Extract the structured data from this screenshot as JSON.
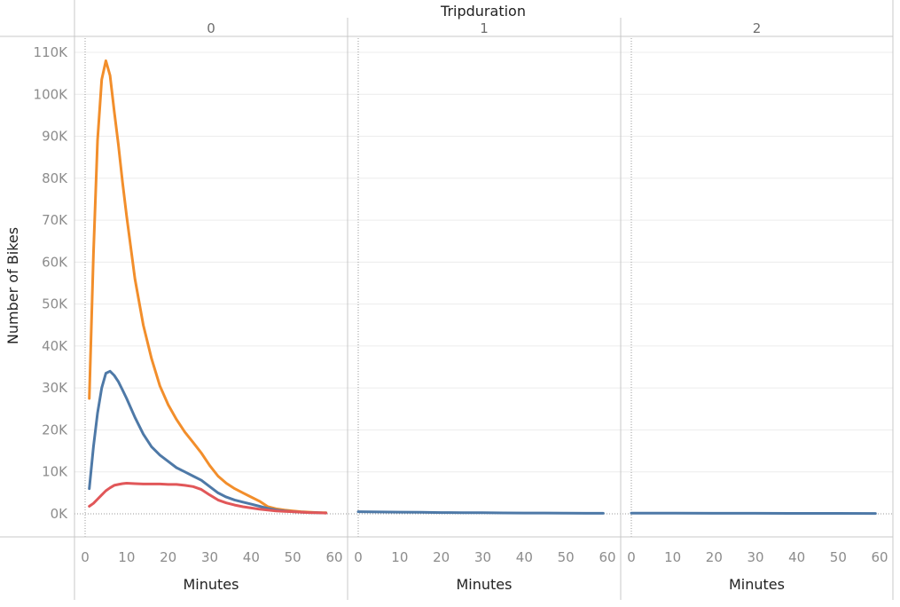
{
  "chart_data": {
    "type": "line",
    "title": "Tripduration",
    "ylabel": "Number of Bikes",
    "xlabel": "Minutes",
    "ylim": [
      0,
      110000
    ],
    "xlim": [
      0,
      60
    ],
    "y_ticks": [
      0,
      10000,
      20000,
      30000,
      40000,
      50000,
      60000,
      70000,
      80000,
      90000,
      100000,
      110000
    ],
    "y_tick_labels": [
      "0K",
      "10K",
      "20K",
      "30K",
      "40K",
      "50K",
      "60K",
      "70K",
      "80K",
      "90K",
      "100K",
      "110K"
    ],
    "x_ticks": [
      0,
      10,
      20,
      30,
      40,
      50,
      60
    ],
    "x_tick_labels": [
      "0",
      "10",
      "20",
      "30",
      "40",
      "50",
      "60"
    ],
    "grid": true,
    "panels": [
      {
        "header": "0",
        "series": [
          {
            "color": "#f28e2b",
            "x": [
              1,
              2,
              3,
              4,
              5,
              6,
              7,
              8,
              9,
              10,
              12,
              14,
              16,
              18,
              20,
              22,
              24,
              26,
              28,
              30,
              32,
              34,
              36,
              38,
              40,
              42,
              44,
              46,
              48,
              50,
              52,
              54,
              56,
              58
            ],
            "values": [
              27500,
              62000,
              89000,
              103500,
              108000,
              104500,
              96000,
              88000,
              79000,
              71000,
              56000,
              45000,
              37000,
              30500,
              26000,
              22500,
              19500,
              17000,
              14500,
              11500,
              9000,
              7300,
              6000,
              5000,
              4000,
              3000,
              1700,
              1200,
              900,
              700,
              500,
              400,
              300,
              250
            ]
          },
          {
            "color": "#4e79a7",
            "x": [
              1,
              2,
              3,
              4,
              5,
              6,
              7,
              8,
              9,
              10,
              12,
              14,
              16,
              18,
              20,
              22,
              24,
              26,
              28,
              30,
              32,
              34,
              36,
              38,
              40,
              42,
              44,
              46,
              48,
              50,
              52,
              54,
              56,
              58
            ],
            "values": [
              6000,
              16000,
              24000,
              30000,
              33500,
              34000,
              33000,
              31500,
              29500,
              27500,
              23000,
              19000,
              16000,
              14000,
              12500,
              11000,
              10000,
              9000,
              8000,
              6500,
              5000,
              4000,
              3300,
              2800,
              2300,
              1800,
              1300,
              900,
              700,
              500,
              400,
              300,
              250,
              200
            ]
          },
          {
            "color": "#e15759",
            "x": [
              1,
              2,
              3,
              4,
              5,
              6,
              7,
              8,
              9,
              10,
              12,
              14,
              16,
              18,
              20,
              22,
              24,
              26,
              28,
              30,
              32,
              34,
              36,
              38,
              40,
              42,
              44,
              46,
              48,
              50,
              52,
              54,
              56,
              58
            ],
            "values": [
              1800,
              2500,
              3500,
              4500,
              5500,
              6200,
              6800,
              7000,
              7200,
              7300,
              7200,
              7100,
              7100,
              7100,
              7000,
              7000,
              6800,
              6500,
              5800,
              4500,
              3300,
              2600,
              2100,
              1700,
              1400,
              1100,
              900,
              700,
              600,
              500,
              400,
              300,
              250,
              200
            ]
          }
        ]
      },
      {
        "header": "1",
        "series": [
          {
            "color": "#4e79a7",
            "x": [
              0,
              5,
              10,
              15,
              20,
              25,
              30,
              35,
              40,
              45,
              50,
              55,
              59
            ],
            "values": [
              500,
              450,
              400,
              350,
              300,
              280,
              250,
              220,
              200,
              180,
              150,
              130,
              120
            ]
          }
        ]
      },
      {
        "header": "2",
        "series": [
          {
            "color": "#4e79a7",
            "x": [
              0,
              10,
              20,
              30,
              40,
              50,
              59
            ],
            "values": [
              150,
              140,
              130,
              120,
              110,
              100,
              90
            ]
          }
        ]
      }
    ]
  }
}
